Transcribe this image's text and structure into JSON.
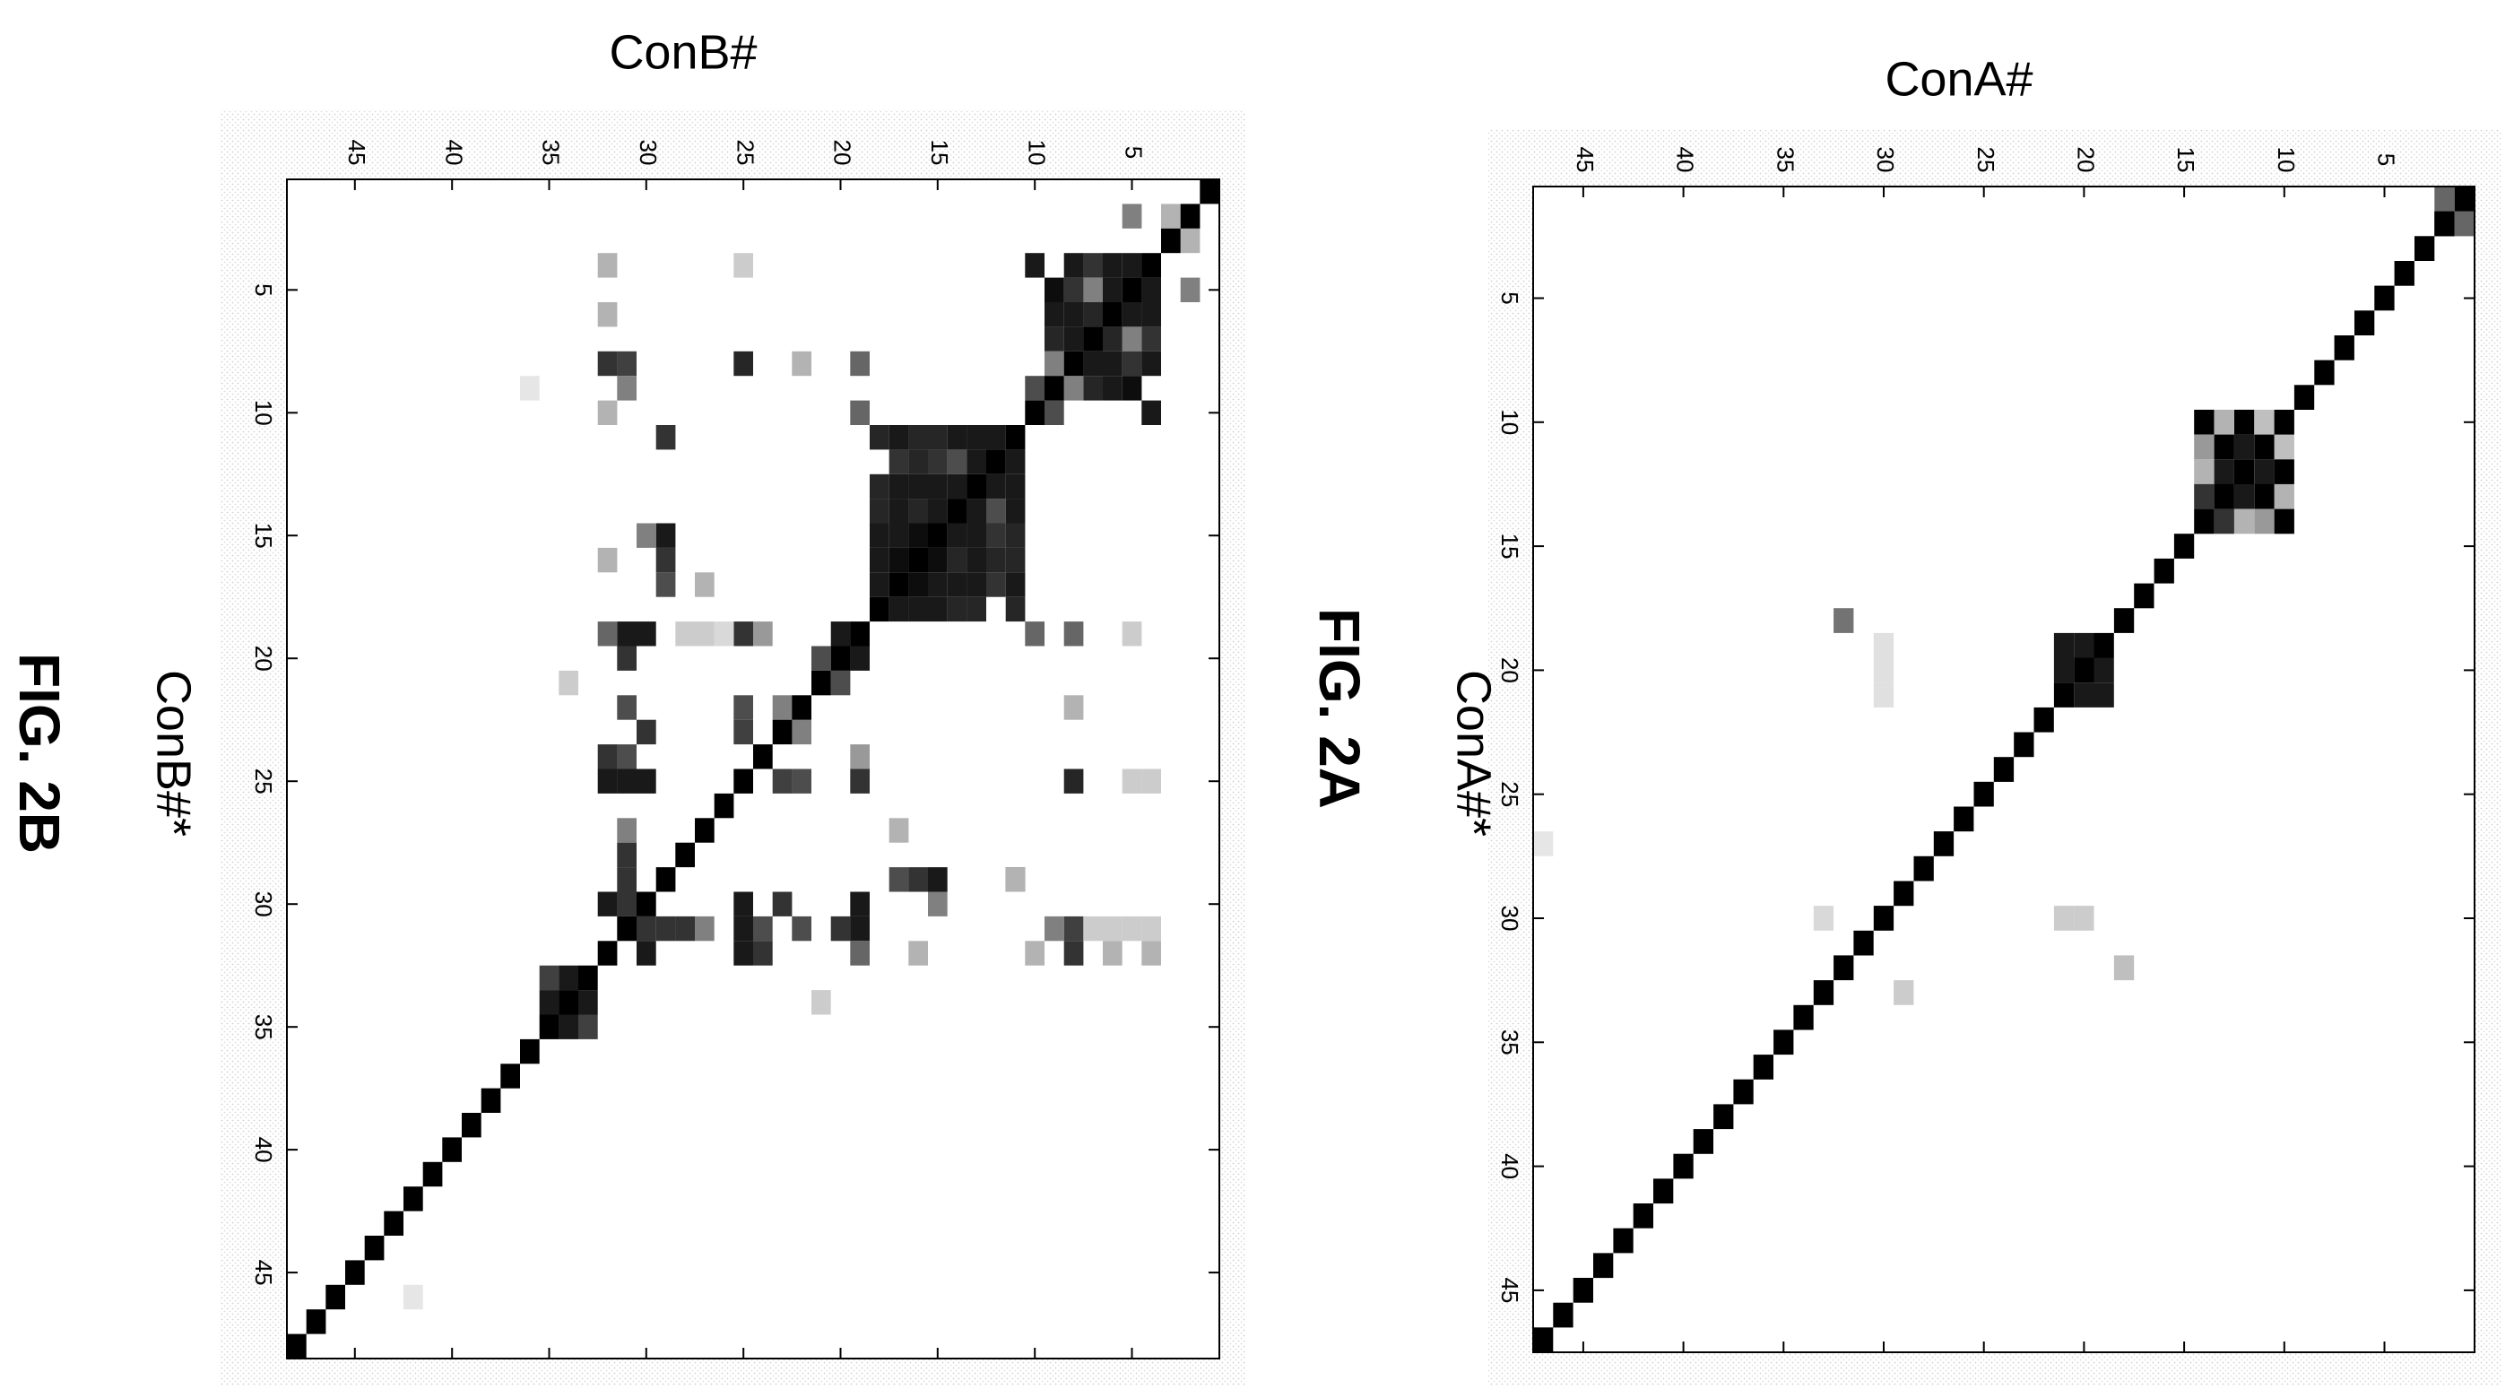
{
  "figure": {
    "fig_a_caption": "FIG. 2A",
    "fig_b_caption": "FIG. 2B"
  },
  "colors": {
    "ink": "#000000",
    "frame": "#000000",
    "stipple": "#d9d9d9"
  },
  "chart_data": [
    {
      "id": "fig-2a",
      "type": "heatmap",
      "title": "",
      "xlabel": "ConA#",
      "ylabel": "ConA#*",
      "n": 47,
      "xlim": [
        0.5,
        47.5
      ],
      "ylim": [
        0.5,
        47.5
      ],
      "xticks": [
        5,
        10,
        15,
        20,
        25,
        30,
        35,
        40,
        45
      ],
      "yticks": [
        5,
        10,
        15,
        20,
        25,
        30,
        35,
        40,
        45
      ],
      "value_scale": "0 = white, 1 = black",
      "diagonal_value": 1.0,
      "cells": [
        [
          1,
          2,
          0.6
        ],
        [
          2,
          1,
          0.6
        ],
        [
          2,
          2,
          1
        ],
        [
          10,
          11,
          0.25
        ],
        [
          11,
          10,
          0.25
        ],
        [
          10,
          12,
          1
        ],
        [
          12,
          10,
          1
        ],
        [
          10,
          13,
          0.3
        ],
        [
          13,
          10,
          0.3
        ],
        [
          10,
          14,
          1
        ],
        [
          14,
          10,
          1
        ],
        [
          11,
          12,
          0.9
        ],
        [
          12,
          11,
          0.9
        ],
        [
          11,
          13,
          1
        ],
        [
          13,
          11,
          1
        ],
        [
          11,
          14,
          0.4
        ],
        [
          14,
          11,
          0.4
        ],
        [
          12,
          13,
          0.9
        ],
        [
          13,
          12,
          0.9
        ],
        [
          12,
          14,
          0.3
        ],
        [
          14,
          12,
          0.3
        ],
        [
          13,
          14,
          0.8
        ],
        [
          14,
          13,
          0.8
        ],
        [
          19,
          20,
          0.9
        ],
        [
          20,
          19,
          0.9
        ],
        [
          19,
          21,
          0.9
        ],
        [
          21,
          19,
          0.9
        ],
        [
          20,
          21,
          0.9
        ],
        [
          21,
          20,
          0.9
        ],
        [
          18,
          32,
          0.25
        ],
        [
          20,
          30,
          0.2
        ],
        [
          21,
          30,
          0.2
        ],
        [
          30,
          20,
          0.12
        ],
        [
          30,
          21,
          0.12
        ],
        [
          30,
          19,
          0.12
        ],
        [
          32,
          18,
          0.55
        ],
        [
          29,
          33,
          0.2
        ],
        [
          33,
          30,
          0.15
        ],
        [
          47,
          27,
          0.1
        ]
      ]
    },
    {
      "id": "fig-2b",
      "type": "heatmap",
      "title": "",
      "xlabel": "ConB#",
      "ylabel": "ConB#*",
      "n": 48,
      "xlim": [
        0.5,
        48.5
      ],
      "ylim": [
        0.5,
        48.5
      ],
      "xticks": [
        5,
        10,
        15,
        20,
        25,
        30,
        35,
        40,
        45
      ],
      "yticks": [
        5,
        10,
        15,
        20,
        25,
        30,
        35,
        40,
        45
      ],
      "value_scale": "0 = white, 1 = black",
      "diagonal_value": 1.0,
      "cells": [
        [
          2,
          3,
          0.3
        ],
        [
          3,
          2,
          0.3
        ],
        [
          2,
          5,
          0.5
        ],
        [
          5,
          2,
          0.5
        ],
        [
          4,
          5,
          0.9
        ],
        [
          5,
          4,
          0.9
        ],
        [
          4,
          6,
          0.9
        ],
        [
          6,
          4,
          0.9
        ],
        [
          4,
          7,
          0.8
        ],
        [
          7,
          4,
          0.8
        ],
        [
          4,
          8,
          0.9
        ],
        [
          8,
          4,
          0.9
        ],
        [
          5,
          6,
          0.9
        ],
        [
          6,
          5,
          0.9
        ],
        [
          5,
          7,
          0.5
        ],
        [
          7,
          5,
          0.5
        ],
        [
          5,
          8,
          0.8
        ],
        [
          8,
          5,
          0.8
        ],
        [
          5,
          9,
          0.95
        ],
        [
          9,
          5,
          0.95
        ],
        [
          6,
          7,
          0.85
        ],
        [
          7,
          6,
          0.85
        ],
        [
          6,
          8,
          0.9
        ],
        [
          8,
          6,
          0.9
        ],
        [
          6,
          9,
          0.9
        ],
        [
          9,
          6,
          0.9
        ],
        [
          7,
          8,
          0.9
        ],
        [
          8,
          7,
          0.9
        ],
        [
          7,
          9,
          0.85
        ],
        [
          9,
          7,
          0.85
        ],
        [
          8,
          9,
          0.5
        ],
        [
          9,
          8,
          0.5
        ],
        [
          4,
          10,
          0.9
        ],
        [
          10,
          4,
          0.9
        ],
        [
          9,
          10,
          0.7
        ],
        [
          10,
          9,
          0.7
        ],
        [
          11,
          12,
          0.9
        ],
        [
          12,
          11,
          0.9
        ],
        [
          11,
          13,
          0.9
        ],
        [
          13,
          11,
          0.9
        ],
        [
          11,
          14,
          0.9
        ],
        [
          14,
          11,
          0.9
        ],
        [
          11,
          15,
          0.85
        ],
        [
          15,
          11,
          0.85
        ],
        [
          11,
          16,
          0.85
        ],
        [
          16,
          11,
          0.85
        ],
        [
          11,
          17,
          0.9
        ],
        [
          17,
          11,
          0.9
        ],
        [
          11,
          18,
          0.85
        ],
        [
          18,
          11,
          0.85
        ],
        [
          12,
          13,
          0.9
        ],
        [
          13,
          12,
          0.9
        ],
        [
          12,
          14,
          0.7
        ],
        [
          14,
          12,
          0.7
        ],
        [
          12,
          15,
          0.8
        ],
        [
          15,
          12,
          0.8
        ],
        [
          12,
          16,
          0.85
        ],
        [
          16,
          12,
          0.85
        ],
        [
          12,
          17,
          0.8
        ],
        [
          17,
          12,
          0.8
        ],
        [
          13,
          14,
          0.9
        ],
        [
          14,
          13,
          0.9
        ],
        [
          13,
          15,
          0.9
        ],
        [
          15,
          13,
          0.9
        ],
        [
          13,
          16,
          0.9
        ],
        [
          16,
          13,
          0.9
        ],
        [
          13,
          17,
          0.9
        ],
        [
          17,
          13,
          0.9
        ],
        [
          13,
          18,
          0.85
        ],
        [
          18,
          13,
          0.85
        ],
        [
          14,
          15,
          0.9
        ],
        [
          15,
          14,
          0.9
        ],
        [
          14,
          16,
          0.85
        ],
        [
          16,
          14,
          0.85
        ],
        [
          14,
          17,
          0.9
        ],
        [
          17,
          14,
          0.9
        ],
        [
          14,
          18,
          0.85
        ],
        [
          18,
          14,
          0.85
        ],
        [
          15,
          16,
          0.95
        ],
        [
          16,
          15,
          0.95
        ],
        [
          15,
          17,
          0.9
        ],
        [
          17,
          15,
          0.9
        ],
        [
          15,
          18,
          0.9
        ],
        [
          18,
          15,
          0.9
        ],
        [
          16,
          17,
          0.95
        ],
        [
          17,
          16,
          0.95
        ],
        [
          16,
          18,
          0.9
        ],
        [
          18,
          16,
          0.9
        ],
        [
          17,
          18,
          0.9
        ],
        [
          18,
          17,
          0.9
        ],
        [
          19,
          20,
          0.9
        ],
        [
          20,
          19,
          0.9
        ],
        [
          20,
          21,
          0.7
        ],
        [
          21,
          20,
          0.7
        ],
        [
          22,
          23,
          0.5
        ],
        [
          23,
          22,
          0.5
        ],
        [
          19,
          31,
          0.9
        ],
        [
          31,
          19,
          0.9
        ],
        [
          20,
          31,
          0.8
        ],
        [
          31,
          20,
          0.8
        ],
        [
          19,
          32,
          0.6
        ],
        [
          32,
          19,
          0.6
        ],
        [
          22,
          31,
          0.7
        ],
        [
          31,
          22,
          0.7
        ],
        [
          24,
          31,
          0.7
        ],
        [
          31,
          24,
          0.7
        ],
        [
          24,
          32,
          0.8
        ],
        [
          32,
          24,
          0.8
        ],
        [
          25,
          31,
          0.9
        ],
        [
          31,
          25,
          0.9
        ],
        [
          25,
          32,
          0.9
        ],
        [
          32,
          25,
          0.9
        ],
        [
          27,
          31,
          0.5
        ],
        [
          31,
          27,
          0.5
        ],
        [
          28,
          31,
          0.8
        ],
        [
          31,
          28,
          0.8
        ],
        [
          29,
          31,
          0.8
        ],
        [
          31,
          29,
          0.8
        ],
        [
          30,
          31,
          0.8
        ],
        [
          31,
          30,
          0.8
        ],
        [
          30,
          32,
          0.9
        ],
        [
          32,
          30,
          0.9
        ],
        [
          33,
          34,
          0.9
        ],
        [
          34,
          33,
          0.9
        ],
        [
          33,
          35,
          0.75
        ],
        [
          35,
          33,
          0.75
        ],
        [
          34,
          35,
          0.9
        ],
        [
          35,
          34,
          0.9
        ],
        [
          29,
          15,
          0.9
        ],
        [
          15,
          29,
          0.9
        ],
        [
          29,
          16,
          0.8
        ],
        [
          16,
          29,
          0.8
        ],
        [
          29,
          17,
          0.7
        ],
        [
          17,
          29,
          0.7
        ],
        [
          29,
          11,
          0.8
        ],
        [
          11,
          29,
          0.8
        ],
        [
          8,
          25,
          0.85
        ],
        [
          25,
          8,
          0.85
        ],
        [
          8,
          31,
          0.75
        ],
        [
          31,
          8,
          0.75
        ],
        [
          8,
          32,
          0.8
        ],
        [
          32,
          8,
          0.8
        ],
        [
          22,
          25,
          0.7
        ],
        [
          25,
          22,
          0.7
        ],
        [
          30,
          25,
          0.9
        ],
        [
          25,
          30,
          0.9
        ],
        [
          30,
          23,
          0.8
        ],
        [
          23,
          30,
          0.8
        ],
        [
          30,
          19,
          0.9
        ],
        [
          19,
          30,
          0.9
        ],
        [
          25,
          23,
          0.75
        ],
        [
          23,
          25,
          0.75
        ],
        [
          25,
          19,
          0.8
        ],
        [
          19,
          25,
          0.8
        ],
        [
          24,
          19,
          0.4
        ],
        [
          19,
          24,
          0.4
        ],
        [
          10,
          19,
          0.6
        ],
        [
          19,
          10,
          0.6
        ],
        [
          8,
          19,
          0.6
        ],
        [
          19,
          8,
          0.6
        ],
        [
          8,
          22,
          0.3
        ],
        [
          22,
          8,
          0.3
        ],
        [
          4,
          32,
          0.3
        ],
        [
          32,
          4,
          0.3
        ],
        [
          6,
          32,
          0.3
        ],
        [
          32,
          6,
          0.3
        ],
        [
          10,
          32,
          0.3
        ],
        [
          32,
          10,
          0.3
        ],
        [
          9,
          31,
          0.5
        ],
        [
          31,
          9,
          0.5
        ],
        [
          11,
          29,
          0.3
        ],
        [
          15,
          30,
          0.5
        ],
        [
          30,
          15,
          0.5
        ],
        [
          17,
          27,
          0.3
        ],
        [
          27,
          17,
          0.3
        ],
        [
          16,
          32,
          0.3
        ],
        [
          32,
          16,
          0.3
        ],
        [
          4,
          25,
          0.2
        ],
        [
          25,
          4,
          0.2
        ],
        [
          5,
          25,
          0.2
        ],
        [
          5,
          19,
          0.2
        ],
        [
          21,
          34,
          0.2
        ],
        [
          34,
          21,
          0.2
        ],
        [
          21,
          21,
          0.4
        ],
        [
          4,
          31,
          0.2
        ],
        [
          5,
          31,
          0.2
        ],
        [
          6,
          31,
          0.2
        ],
        [
          7,
          31,
          0.2
        ],
        [
          26,
          19,
          0.15
        ],
        [
          27,
          19,
          0.2
        ],
        [
          28,
          19,
          0.2
        ],
        [
          42,
          46,
          0.1
        ],
        [
          36,
          9,
          0.1
        ]
      ]
    }
  ]
}
